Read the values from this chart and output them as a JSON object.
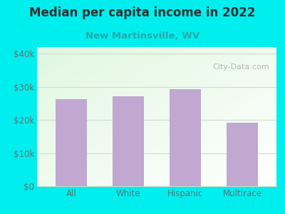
{
  "title": "Median per capita income in 2022",
  "subtitle": "New Martinsville, WV",
  "categories": [
    "All",
    "White",
    "Hispanic",
    "Multirace"
  ],
  "values": [
    26200,
    27200,
    29200,
    19200
  ],
  "bar_color": "#c0a8d0",
  "background_outer": "#00EEEE",
  "title_color": "#333333",
  "subtitle_color": "#22AAAA",
  "tick_color": "#557777",
  "ytick_labels": [
    "$0",
    "$10k",
    "$20k",
    "$30k",
    "$40k"
  ],
  "ytick_values": [
    0,
    10000,
    20000,
    30000,
    40000
  ],
  "ylim": [
    0,
    42000
  ],
  "grid_color": "#ccddcc",
  "watermark": "City-Data.com",
  "title_fontsize": 12,
  "subtitle_fontsize": 9.5
}
